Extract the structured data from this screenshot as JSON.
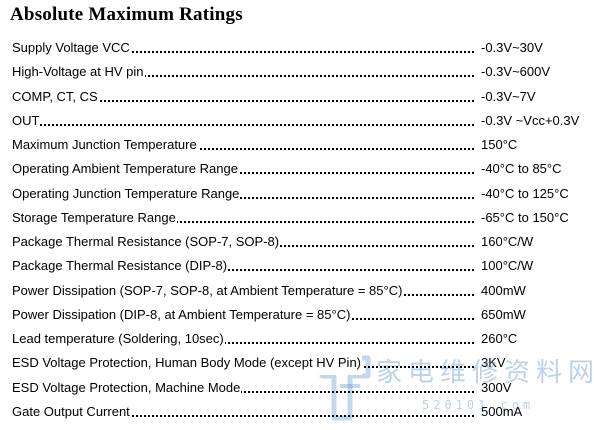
{
  "title": "Absolute Maximum Ratings",
  "ratings": [
    {
      "parameter": "Supply Voltage VCC",
      "value": "-0.3V~30V"
    },
    {
      "parameter": "High-Voltage at HV pin",
      "value": "-0.3V~600V"
    },
    {
      "parameter": "COMP, CT, CS",
      "value": "-0.3V~7V"
    },
    {
      "parameter": "OUT",
      "value": "-0.3V ~Vcc+0.3V"
    },
    {
      "parameter": "Maximum Junction Temperature",
      "value": "150°C"
    },
    {
      "parameter": "Operating Ambient Temperature Range",
      "value": "-40°C to 85°C"
    },
    {
      "parameter": "Operating Junction Temperature Range",
      "value": "-40°C to 125°C"
    },
    {
      "parameter": "Storage Temperature Range",
      "value": "-65°C to 150°C"
    },
    {
      "parameter": "Package Thermal Resistance (SOP-7, SOP-8)",
      "value": "160°C/W"
    },
    {
      "parameter": "Package Thermal Resistance (DIP-8)",
      "value": "100°C/W"
    },
    {
      "parameter": "Power Dissipation (SOP-7, SOP-8, at Ambient Temperature = 85°C)",
      "value": "400mW"
    },
    {
      "parameter": "Power Dissipation (DIP-8, at Ambient Temperature = 85°C)",
      "value": "650mW"
    },
    {
      "parameter": "Lead temperature (Soldering, 10sec)",
      "value": "260°C"
    },
    {
      "parameter": "ESD Voltage Protection, Human Body Mode (except HV Pin)",
      "value": "3KV"
    },
    {
      "parameter": "ESD Voltage Protection, Machine Mode",
      "value": "300V"
    },
    {
      "parameter": "Gate Output Current",
      "value": "500mA"
    }
  ],
  "watermark": {
    "text": "家电维修资料网",
    "subtext": "520101.com",
    "color": "#5a8cc8"
  }
}
